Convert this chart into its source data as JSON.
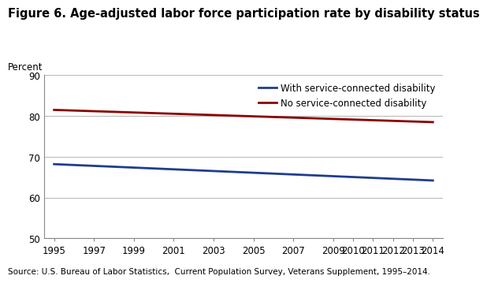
{
  "title": "Figure 6. Age-adjusted labor force participation rate by disability status",
  "ylabel": "Percent",
  "source": "Source: U.S. Bureau of Labor Statistics,  Current Population Survey, Veterans Supplement, 1995–2014.",
  "x_ticks": [
    1995,
    1997,
    1999,
    2001,
    2003,
    2005,
    2007,
    2009,
    2010,
    2011,
    2012,
    2013,
    2014
  ],
  "ylim": [
    50,
    90
  ],
  "yticks": [
    50,
    60,
    70,
    80,
    90
  ],
  "xlim_left": 1994.5,
  "xlim_right": 2014.5,
  "blue_line": {
    "label": "With service-connected disability",
    "color": "#1f3d8c",
    "x": [
      1995,
      2014
    ],
    "y": [
      68.2,
      64.2
    ]
  },
  "red_line": {
    "label": "No service-connected disability",
    "color": "#8b0000",
    "x": [
      1995,
      2014
    ],
    "y": [
      81.5,
      78.5
    ]
  },
  "background_color": "#ffffff",
  "grid_color": "#bbbbbb",
  "title_fontsize": 10.5,
  "tick_fontsize": 8.5,
  "source_fontsize": 7.5,
  "legend_fontsize": 8.5,
  "ylabel_fontsize": 8.5
}
